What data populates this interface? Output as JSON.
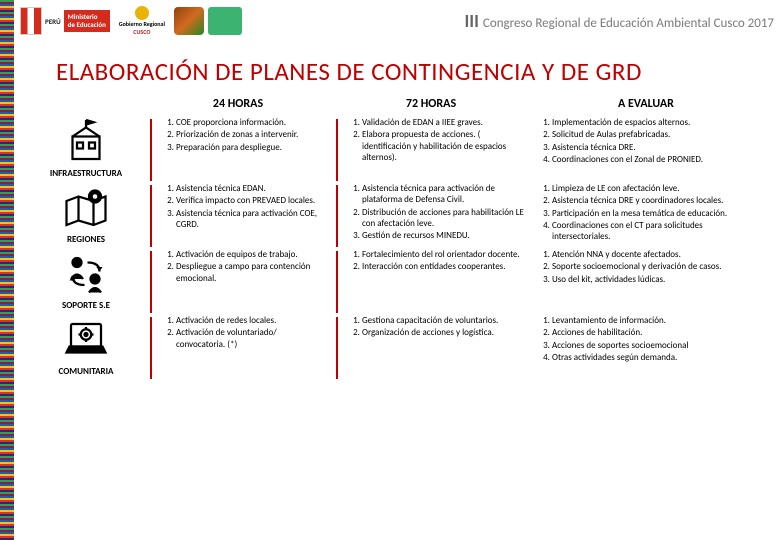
{
  "banner": {
    "ministry_line1": "Ministerio",
    "ministry_line2": "de Educación",
    "peru": "PERÚ",
    "cusco_top": "Gobierno Regional",
    "cusco_main": "CUSCO",
    "right_iii": "III",
    "right_text": "Congreso Regional de Educación Ambiental Cusco 2017"
  },
  "title": "ELABORACIÓN DE PLANES DE CONTINGENCIA Y DE GRD",
  "columns": {
    "c1": "24 HORAS",
    "c2": "72 HORAS",
    "c3": "A EVALUAR"
  },
  "rows": [
    {
      "label": "INFRAESTRUCTURA",
      "c1": [
        "COE proporciona información.",
        "Priorización de zonas a intervenir.",
        "Preparación para despliegue."
      ],
      "c2": [
        "Validación de EDAN a IIEE graves.",
        "Elabora propuesta de acciones. ( identificación y habilitación de espacios alternos)."
      ],
      "c3": [
        "Implementación de espacios alternos.",
        "Solicitud de Aulas prefabricadas.",
        "Asistencia técnica DRE.",
        "Coordinaciones con el Zonal de PRONIED."
      ]
    },
    {
      "label": "REGIONES",
      "c1": [
        "Asistencia técnica EDAN.",
        "Verifica impacto con PREVAED locales.",
        "Asistencia técnica para activación COE, CGRD."
      ],
      "c2": [
        "Asistencia técnica para activación de plataforma de Defensa Civil.",
        "Distribución de acciones para habilitación LE con afectación leve.",
        "Gestión de recursos MINEDU."
      ],
      "c3": [
        "Limpieza de LE con afectación leve.",
        "Asistencia técnica DRE y coordinadores locales.",
        "Participación en la mesa temática de educación.",
        "Coordinaciones con el CT para solicitudes intersectoriales."
      ]
    },
    {
      "label": "SOPORTE S.E",
      "c1": [
        "Activación de equipos de trabajo.",
        "Despliegue a campo para contención emocional."
      ],
      "c2": [
        "Fortalecimiento del rol orientador docente.",
        "Interacción con entidades cooperantes."
      ],
      "c3": [
        "Atención NNA y docente afectados.",
        "Soporte socioemocional y derivación de casos.",
        "Uso del kit, actividades lúdicas."
      ]
    },
    {
      "label": "COMUNITARIA",
      "c1": [
        "Activación de redes locales.",
        "Activación de voluntariado/ convocatoria. (*)"
      ],
      "c2": [
        "Gestiona capacitación de voluntarios.",
        "Organización de acciones y logística."
      ],
      "c3": [
        "Levantamiento de información.",
        "Acciones de habilitación.",
        "Acciones de soportes socioemocional",
        "Otras actividades según demanda."
      ]
    }
  ],
  "colors": {
    "accent": "#c00000",
    "text": "#222222"
  }
}
